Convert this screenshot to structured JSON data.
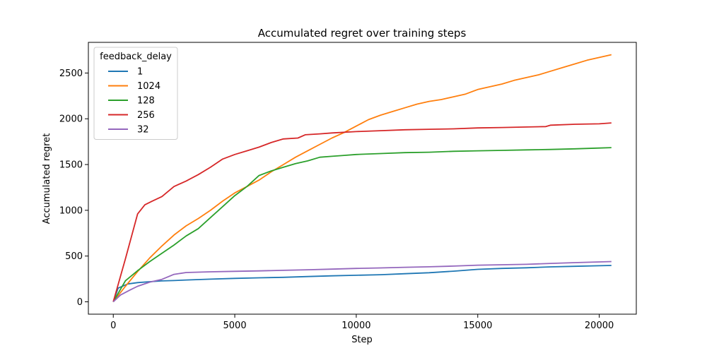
{
  "chart_data": {
    "type": "line",
    "title": "Accumulated regret over training steps",
    "xlabel": "Step",
    "ylabel": "Accumulated regret",
    "xlim": [
      -1025,
      21525
    ],
    "ylim": [
      -135,
      2835
    ],
    "xticks": [
      0,
      5000,
      10000,
      15000,
      20000
    ],
    "yticks": [
      0,
      500,
      1000,
      1500,
      2000,
      2500
    ],
    "grid": false,
    "legend": {
      "title": "feedback_delay",
      "placement": "top-left"
    },
    "series": [
      {
        "name": "1",
        "color": "#1f77b4",
        "x": [
          0,
          200,
          600,
          1000,
          1500,
          2000,
          2500,
          3000,
          4000,
          5000,
          6000,
          7000,
          8000,
          9000,
          10000,
          11000,
          12000,
          13000,
          14000,
          15000,
          16000,
          17000,
          18000,
          19000,
          20000,
          20500
        ],
        "y": [
          0,
          150,
          195,
          210,
          220,
          228,
          232,
          238,
          248,
          256,
          262,
          268,
          276,
          284,
          290,
          296,
          307,
          318,
          335,
          355,
          365,
          372,
          382,
          388,
          394,
          397
        ]
      },
      {
        "name": "1024",
        "color": "#ff7f0e",
        "x": [
          0,
          500,
          1000,
          1500,
          2000,
          2500,
          3000,
          3500,
          4000,
          4500,
          5000,
          5500,
          6000,
          6500,
          7000,
          7500,
          8000,
          8500,
          9000,
          9500,
          10000,
          10500,
          11000,
          11500,
          12000,
          12500,
          13000,
          13500,
          14000,
          14500,
          15000,
          15500,
          16000,
          16500,
          17000,
          17500,
          18000,
          18500,
          19000,
          19500,
          20000,
          20500
        ],
        "y": [
          0,
          170,
          330,
          480,
          610,
          730,
          830,
          910,
          1000,
          1100,
          1190,
          1260,
          1330,
          1420,
          1500,
          1580,
          1650,
          1720,
          1790,
          1850,
          1920,
          1990,
          2040,
          2080,
          2120,
          2160,
          2190,
          2210,
          2240,
          2270,
          2320,
          2350,
          2380,
          2420,
          2450,
          2480,
          2520,
          2560,
          2600,
          2640,
          2670,
          2700
        ]
      },
      {
        "name": "128",
        "color": "#2ca02c",
        "x": [
          0,
          500,
          1000,
          1500,
          2000,
          2500,
          3000,
          3500,
          4000,
          4500,
          5000,
          5500,
          6000,
          6500,
          7000,
          7500,
          8000,
          8500,
          9000,
          9500,
          10000,
          11000,
          12000,
          13000,
          14000,
          15000,
          16000,
          17000,
          18000,
          19000,
          20000,
          20500
        ],
        "y": [
          0,
          230,
          340,
          440,
          530,
          620,
          720,
          800,
          920,
          1040,
          1160,
          1260,
          1380,
          1430,
          1470,
          1510,
          1540,
          1580,
          1590,
          1600,
          1610,
          1620,
          1630,
          1635,
          1645,
          1650,
          1655,
          1660,
          1665,
          1672,
          1680,
          1685
        ]
      },
      {
        "name": "256",
        "color": "#d62728",
        "x": [
          0,
          500,
          1000,
          1300,
          1600,
          2000,
          2500,
          3000,
          3500,
          4000,
          4500,
          5000,
          5500,
          6000,
          6500,
          7000,
          7600,
          7900,
          8500,
          9000,
          10000,
          11000,
          12000,
          13000,
          14000,
          15000,
          16000,
          17000,
          17800,
          18000,
          19000,
          20000,
          20500
        ],
        "y": [
          0,
          470,
          960,
          1060,
          1100,
          1150,
          1260,
          1320,
          1390,
          1470,
          1560,
          1610,
          1650,
          1690,
          1740,
          1780,
          1790,
          1825,
          1835,
          1845,
          1860,
          1870,
          1880,
          1885,
          1890,
          1900,
          1905,
          1910,
          1915,
          1930,
          1940,
          1945,
          1955
        ]
      },
      {
        "name": "32",
        "color": "#9467bd",
        "x": [
          0,
          300,
          700,
          1000,
          1500,
          2000,
          2500,
          3000,
          4000,
          5000,
          6000,
          7000,
          8000,
          9000,
          10000,
          11000,
          12000,
          13000,
          14000,
          15000,
          16000,
          17000,
          18000,
          19000,
          20000,
          20500
        ],
        "y": [
          0,
          75,
          130,
          170,
          215,
          245,
          300,
          320,
          328,
          333,
          338,
          344,
          350,
          357,
          365,
          370,
          377,
          383,
          390,
          400,
          405,
          410,
          420,
          428,
          436,
          440
        ]
      }
    ]
  }
}
